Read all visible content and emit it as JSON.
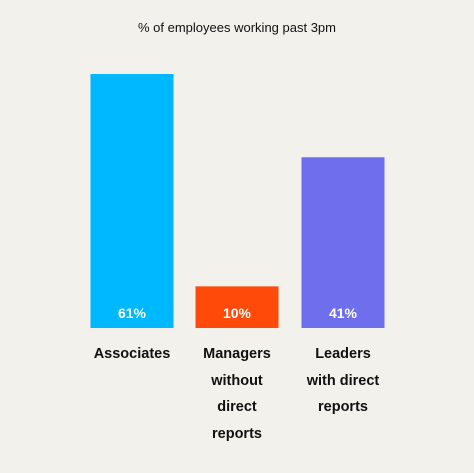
{
  "chart_data": {
    "type": "bar",
    "title": "% of employees working past 3pm",
    "categories": [
      "Associates",
      "Managers without direct reports",
      "Leaders with direct reports"
    ],
    "category_lines": [
      [
        "Associates"
      ],
      [
        "Managers",
        "without",
        "direct",
        "reports"
      ],
      [
        "Leaders",
        "with direct",
        "reports"
      ]
    ],
    "values": [
      61,
      10,
      41
    ],
    "value_labels": [
      "61%",
      "10%",
      "41%"
    ],
    "colors": [
      "#00b8ff",
      "#ff4a0a",
      "#6f6fee"
    ],
    "ylim": [
      0,
      61
    ],
    "grid": false,
    "legend": "none"
  }
}
